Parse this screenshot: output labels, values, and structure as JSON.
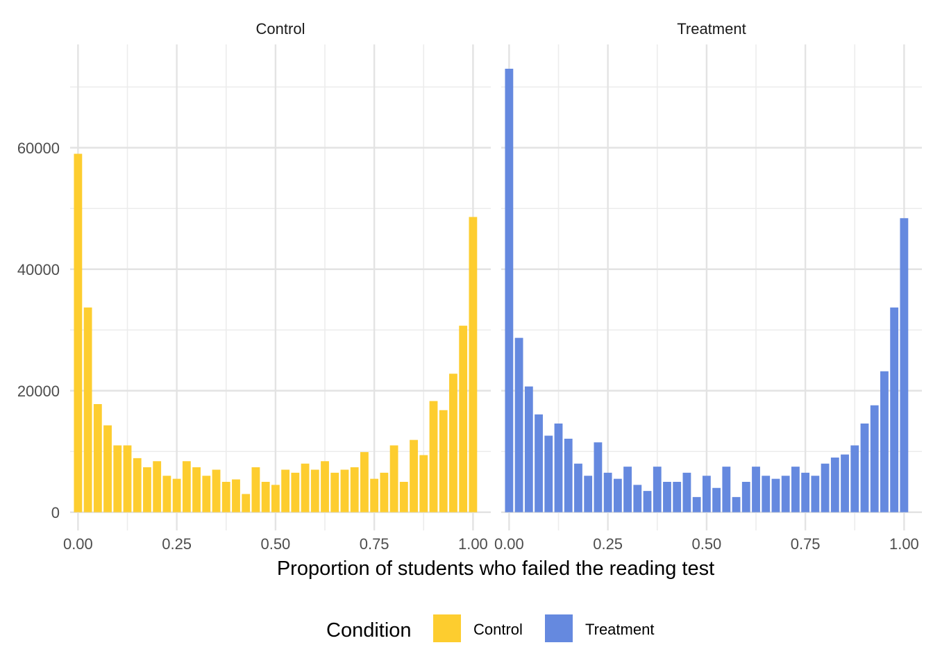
{
  "chart_data": {
    "type": "bar",
    "xlabel": "Proportion of students who failed the reading test",
    "ylabel": "",
    "x_ticks": [
      "0.00",
      "0.25",
      "0.50",
      "0.75",
      "1.00"
    ],
    "y_ticks": [
      "0",
      "20000",
      "40000",
      "60000"
    ],
    "xlim": [
      -0.02,
      1.045
    ],
    "ylim": [
      -3000,
      77000
    ],
    "grid": true,
    "legend": {
      "title": "Condition",
      "position": "bottom",
      "entries": [
        {
          "label": "Control",
          "color": "#FDCD2F"
        },
        {
          "label": "Treatment",
          "color": "#6589DF"
        }
      ]
    },
    "bin_width": 0.025,
    "bin_centers": [
      0.0,
      0.025,
      0.05,
      0.075,
      0.1,
      0.125,
      0.15,
      0.175,
      0.2,
      0.225,
      0.25,
      0.275,
      0.3,
      0.325,
      0.35,
      0.375,
      0.4,
      0.425,
      0.45,
      0.475,
      0.5,
      0.525,
      0.55,
      0.575,
      0.6,
      0.625,
      0.65,
      0.675,
      0.7,
      0.725,
      0.75,
      0.775,
      0.8,
      0.825,
      0.85,
      0.875,
      0.9,
      0.925,
      0.95,
      0.975,
      1.0
    ],
    "facets": [
      {
        "label": "Control",
        "color": "#FDCD2F",
        "values": [
          59000,
          33700,
          17800,
          14300,
          11000,
          11000,
          8900,
          7400,
          8400,
          6000,
          5500,
          8400,
          7400,
          6000,
          7000,
          5000,
          5400,
          3000,
          7400,
          5000,
          4500,
          7000,
          6500,
          8000,
          7000,
          8400,
          6500,
          7000,
          7400,
          9900,
          5500,
          6500,
          11000,
          5000,
          11900,
          9400,
          18300,
          16800,
          22800,
          30700,
          48600
        ]
      },
      {
        "label": "Treatment",
        "color": "#6589DF",
        "values": [
          73000,
          28700,
          20700,
          16100,
          12600,
          14600,
          12100,
          8000,
          6000,
          11500,
          6500,
          5500,
          7500,
          4500,
          3500,
          7500,
          5000,
          5000,
          6500,
          2500,
          6000,
          4000,
          7500,
          2500,
          5000,
          7500,
          6000,
          5500,
          6000,
          7500,
          6500,
          6000,
          8000,
          9000,
          9500,
          11000,
          14600,
          17600,
          23200,
          33700,
          48400
        ]
      }
    ]
  }
}
